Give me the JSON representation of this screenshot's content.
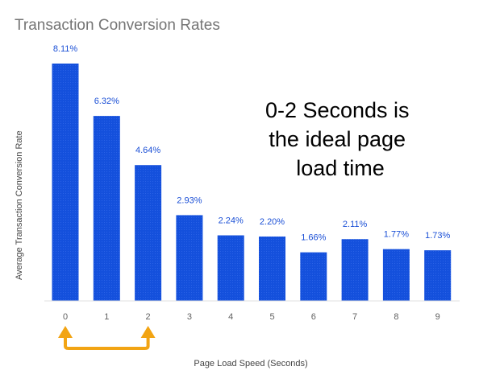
{
  "chart_data": {
    "type": "bar",
    "title": "Transaction Conversion Rates",
    "xlabel": "Page Load Speed (Seconds)",
    "ylabel": "Average Transaction Conversion Rate",
    "categories": [
      "0",
      "1",
      "2",
      "3",
      "4",
      "5",
      "6",
      "7",
      "8",
      "9"
    ],
    "values": [
      8.11,
      6.32,
      4.64,
      2.93,
      2.24,
      2.2,
      1.66,
      2.11,
      1.77,
      1.73
    ],
    "data_labels": [
      "8.11%",
      "6.32%",
      "4.64%",
      "2.93%",
      "2.24%",
      "2.20%",
      "1.66%",
      "2.11%",
      "1.77%",
      "1.73%"
    ],
    "ylim": [
      0,
      8.11
    ],
    "grid": false,
    "bar_color": "#1450dc",
    "label_color": "#1a4fd6",
    "annotation": {
      "lines": [
        "0-2 Seconds is",
        "the ideal page",
        "load time"
      ]
    },
    "highlight": {
      "from_category": "0",
      "to_category": "2",
      "color": "#f2a413"
    }
  }
}
